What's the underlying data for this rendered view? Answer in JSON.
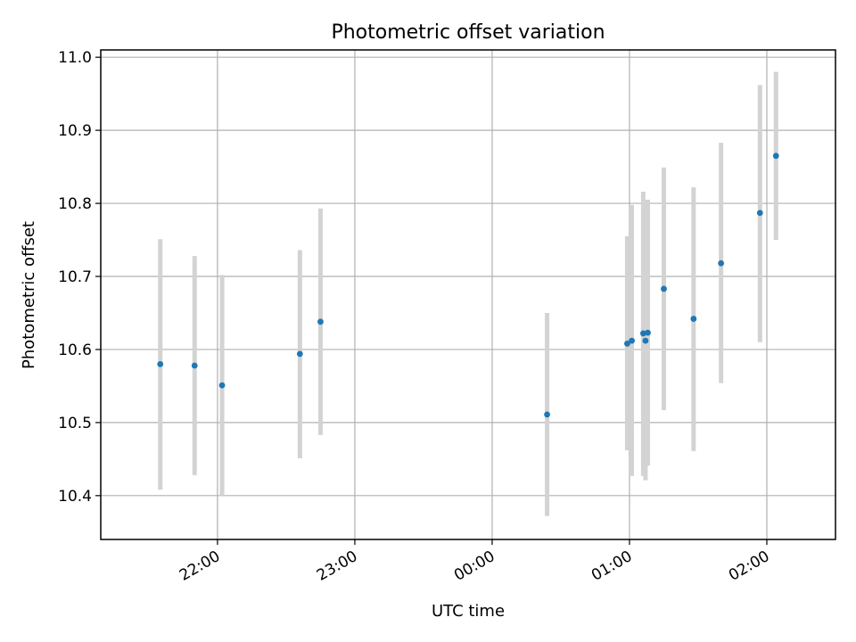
{
  "chart_data": {
    "type": "scatter",
    "title": "Photometric offset variation",
    "xlabel": "UTC time",
    "ylabel": "Photometric offset",
    "xlim": [
      "21:09",
      "02:30"
    ],
    "ylim": [
      10.34,
      11.01
    ],
    "grid": true,
    "x_ticks": [
      "22:00",
      "23:00",
      "00:00",
      "01:00",
      "02:00"
    ],
    "y_ticks": [
      "10.4",
      "10.5",
      "10.6",
      "10.7",
      "10.8",
      "10.9",
      "11.0"
    ],
    "series": [
      {
        "marker_color": "#1f77b4",
        "errorbar_color": "#d3d3d3",
        "points": [
          {
            "x": "21:35",
            "y": 10.58,
            "ymin": 10.408,
            "ymax": 10.751
          },
          {
            "x": "21:50",
            "y": 10.578,
            "ymin": 10.428,
            "ymax": 10.728
          },
          {
            "x": "22:02",
            "y": 10.551,
            "ymin": 10.4,
            "ymax": 10.702
          },
          {
            "x": "22:36",
            "y": 10.594,
            "ymin": 10.451,
            "ymax": 10.736
          },
          {
            "x": "22:45",
            "y": 10.638,
            "ymin": 10.483,
            "ymax": 10.793
          },
          {
            "x": "00:24",
            "y": 10.511,
            "ymin": 10.372,
            "ymax": 10.65
          },
          {
            "x": "00:59",
            "y": 10.608,
            "ymin": 10.462,
            "ymax": 10.755
          },
          {
            "x": "01:01",
            "y": 10.612,
            "ymin": 10.427,
            "ymax": 10.798
          },
          {
            "x": "01:06",
            "y": 10.622,
            "ymin": 10.427,
            "ymax": 10.816
          },
          {
            "x": "01:07",
            "y": 10.612,
            "ymin": 10.421,
            "ymax": 10.803
          },
          {
            "x": "01:08",
            "y": 10.623,
            "ymin": 10.441,
            "ymax": 10.805
          },
          {
            "x": "01:15",
            "y": 10.683,
            "ymin": 10.517,
            "ymax": 10.849
          },
          {
            "x": "01:28",
            "y": 10.642,
            "ymin": 10.461,
            "ymax": 10.822
          },
          {
            "x": "01:40",
            "y": 10.718,
            "ymin": 10.554,
            "ymax": 10.883
          },
          {
            "x": "01:57",
            "y": 10.787,
            "ymin": 10.61,
            "ymax": 10.962
          },
          {
            "x": "02:04",
            "y": 10.865,
            "ymin": 10.75,
            "ymax": 10.98
          }
        ]
      }
    ]
  }
}
